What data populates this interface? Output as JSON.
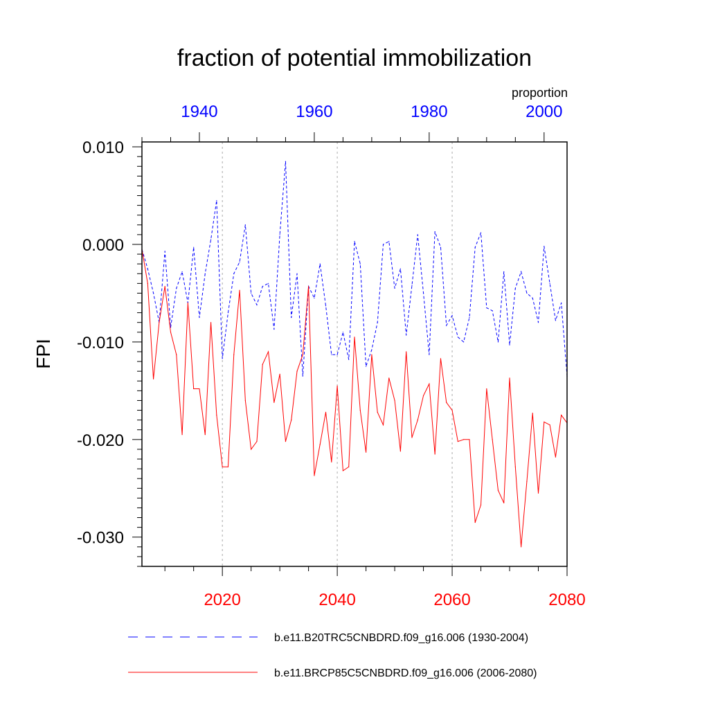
{
  "chart_data": {
    "type": "line",
    "title": "fraction of potential immobilization",
    "ylabel": "FPI",
    "top_axis_label": "proportion",
    "ylim": [
      -0.033,
      0.0105
    ],
    "yticks": [
      0.01,
      0.0,
      -0.01,
      -0.02,
      -0.03
    ],
    "ytick_labels": [
      "0.010",
      "0.000",
      "-0.010",
      "-0.020",
      "-0.030"
    ],
    "bottom_axis": {
      "range": [
        2006,
        2080
      ],
      "ticks": [
        2020,
        2040,
        2060,
        2080
      ],
      "tick_labels": [
        "2020",
        "2040",
        "2060",
        "2080"
      ],
      "color": "#ff0000"
    },
    "top_axis": {
      "range": [
        1930,
        2004
      ],
      "ticks": [
        1940,
        1960,
        1980,
        2000
      ],
      "tick_labels": [
        "1940",
        "1960",
        "1980",
        "2000"
      ],
      "color": "#0000ff"
    },
    "gridlines_x": [
      2020,
      2040,
      2060
    ],
    "series": [
      {
        "name": "b.e11.B20TRC5CNBDRD.f09_g16.006 (1930-2004)",
        "axis": "top",
        "color": "#0000ff",
        "style": "dashed",
        "x_start": 1930,
        "values": [
          -0.0005,
          -0.0025,
          -0.005,
          -0.008,
          -0.0007,
          -0.0085,
          -0.0045,
          -0.0028,
          -0.006,
          -0.0003,
          -0.0075,
          -0.003,
          0.0005,
          0.0045,
          -0.0117,
          -0.007,
          -0.003,
          -0.0018,
          0.002,
          -0.005,
          -0.0062,
          -0.0043,
          -0.004,
          -0.0087,
          0.001,
          0.0085,
          -0.0075,
          -0.003,
          -0.0135,
          -0.0043,
          -0.0055,
          -0.002,
          -0.0063,
          -0.0113,
          -0.0113,
          -0.009,
          -0.0118,
          0.0003,
          -0.002,
          -0.0125,
          -0.0108,
          -0.008,
          0.0,
          0.0003,
          -0.0045,
          -0.0025,
          -0.0093,
          -0.0042,
          0.001,
          -0.005,
          -0.0113,
          0.0013,
          -0.0003,
          -0.0083,
          -0.0073,
          -0.0095,
          -0.01,
          -0.0075,
          -0.0003,
          0.0012,
          -0.0065,
          -0.0068,
          -0.01,
          -0.0028,
          -0.0103,
          -0.0045,
          -0.0028,
          -0.005,
          -0.0055,
          -0.008,
          -0.0002,
          -0.004,
          -0.0078,
          -0.006,
          -0.0135
        ]
      },
      {
        "name": "b.e11.BRCP85C5CNBDRD.f09_g16.006 (2006-2080)",
        "axis": "bottom",
        "color": "#ff0000",
        "style": "solid",
        "x_start": 2006,
        "values": [
          -0.0005,
          -0.004,
          -0.0138,
          -0.008,
          -0.0043,
          -0.009,
          -0.0113,
          -0.0195,
          -0.006,
          -0.0148,
          -0.0148,
          -0.0195,
          -0.008,
          -0.0175,
          -0.0228,
          -0.0228,
          -0.0113,
          -0.0047,
          -0.016,
          -0.021,
          -0.0202,
          -0.0123,
          -0.011,
          -0.0162,
          -0.0133,
          -0.0202,
          -0.018,
          -0.013,
          -0.0113,
          -0.0043,
          -0.0237,
          -0.0205,
          -0.0172,
          -0.0223,
          -0.0145,
          -0.0232,
          -0.0228,
          -0.0095,
          -0.017,
          -0.0213,
          -0.0113,
          -0.0172,
          -0.0185,
          -0.0137,
          -0.016,
          -0.0212,
          -0.011,
          -0.0198,
          -0.018,
          -0.0155,
          -0.0143,
          -0.0215,
          -0.0117,
          -0.0162,
          -0.017,
          -0.0202,
          -0.02,
          -0.02,
          -0.0285,
          -0.0267,
          -0.0148,
          -0.02,
          -0.0252,
          -0.0265,
          -0.0137,
          -0.0228,
          -0.031,
          -0.0243,
          -0.0173,
          -0.0255,
          -0.0182,
          -0.0185,
          -0.0218,
          -0.0175,
          -0.0183
        ]
      }
    ],
    "legend": [
      {
        "label": "b.e11.B20TRC5CNBDRD.f09_g16.006 (1930-2004)",
        "color": "#0000ff",
        "style": "dashed"
      },
      {
        "label": "b.e11.BRCP85C5CNBDRD.f09_g16.006 (2006-2080)",
        "color": "#ff0000",
        "style": "solid"
      }
    ],
    "legend_position": "bottom"
  }
}
